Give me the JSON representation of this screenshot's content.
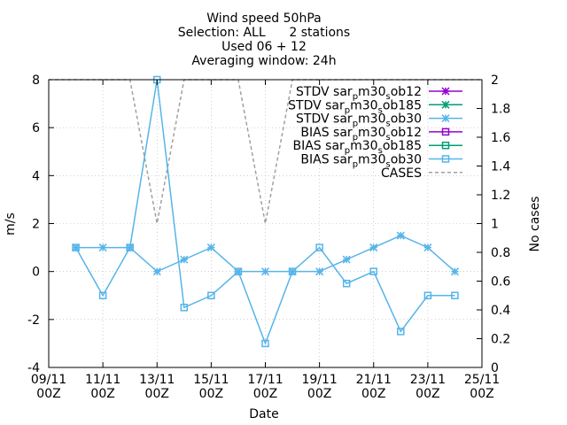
{
  "chart_data": {
    "type": "line",
    "title_lines": [
      "Wind speed 50hPa",
      "Selection: ALL      2 stations",
      "Used 06 + 12",
      "Averaging window: 24h"
    ],
    "xlabel": "Date",
    "ylabel": "m/s",
    "y2label": "No cases",
    "ylim": [
      -4,
      8
    ],
    "y2lim": [
      0,
      2
    ],
    "xlim_days": [
      0,
      16
    ],
    "x_ticks": [
      {
        "day": 0,
        "label1": "09/11",
        "label2": "00Z"
      },
      {
        "day": 2,
        "label1": "11/11",
        "label2": "00Z"
      },
      {
        "day": 4,
        "label1": "13/11",
        "label2": "00Z"
      },
      {
        "day": 6,
        "label1": "15/11",
        "label2": "00Z"
      },
      {
        "day": 8,
        "label1": "17/11",
        "label2": "00Z"
      },
      {
        "day": 10,
        "label1": "19/11",
        "label2": "00Z"
      },
      {
        "day": 12,
        "label1": "21/11",
        "label2": "00Z"
      },
      {
        "day": 14,
        "label1": "23/11",
        "label2": "00Z"
      },
      {
        "day": 16,
        "label1": "25/11",
        "label2": "00Z"
      }
    ],
    "y_ticks": [
      -4,
      -2,
      0,
      2,
      4,
      6,
      8
    ],
    "y2_ticks": [
      0,
      0.2,
      0.4,
      0.6,
      0.8,
      1,
      1.2,
      1.4,
      1.6,
      1.8,
      2
    ],
    "legend_position": "top-right",
    "x_days": [
      1,
      2,
      3,
      4,
      5,
      6,
      7,
      8,
      9,
      10,
      11,
      12,
      13,
      14,
      15
    ],
    "series": [
      {
        "name": "STDV sar_pm30_sob12",
        "label_main": "STDV sar",
        "label_sub": "p",
        "label_tail": "m30",
        "label_sub2": "s",
        "label_end": "ob12",
        "color": "#9400d3",
        "marker": "x",
        "values": []
      },
      {
        "name": "STDV sar_pm30_sob185",
        "label_main": "STDV sar",
        "label_sub": "p",
        "label_tail": "m30",
        "label_sub2": "s",
        "label_end": "ob185",
        "color": "#009e73",
        "marker": "x",
        "values": []
      },
      {
        "name": "STDV sar_pm30_sob30",
        "label_main": "STDV sar",
        "label_sub": "p",
        "label_tail": "m30",
        "label_sub2": "s",
        "label_end": "ob30",
        "color": "#56b4e9",
        "marker": "x",
        "values": [
          1,
          1,
          1,
          0,
          0.5,
          1,
          0,
          0,
          0,
          0,
          0.5,
          1,
          1.5,
          1,
          0
        ]
      },
      {
        "name": "BIAS sar_pm30_sob12",
        "label_main": "BIAS sar",
        "label_sub": "p",
        "label_tail": "m30",
        "label_sub2": "s",
        "label_end": "ob12",
        "color": "#9400d3",
        "marker": "square",
        "values": []
      },
      {
        "name": "BIAS sar_pm30_sob185",
        "label_main": "BIAS sar",
        "label_sub": "p",
        "label_tail": "m30",
        "label_sub2": "s",
        "label_end": "ob185",
        "color": "#009e73",
        "marker": "square",
        "values": []
      },
      {
        "name": "BIAS sar_pm30_sob30",
        "label_main": "BIAS sar",
        "label_sub": "p",
        "label_tail": "m30",
        "label_sub2": "s",
        "label_end": "ob30",
        "color": "#56b4e9",
        "marker": "square",
        "values": [
          1,
          -1,
          1,
          8,
          -1.5,
          -1,
          0,
          -3,
          0,
          1,
          -0.5,
          0,
          -2.5,
          -1,
          -1
        ]
      }
    ],
    "cases": {
      "name": "CASES",
      "color": "#a0a0a0",
      "x_days": [
        0,
        3,
        4,
        5,
        7,
        8,
        9,
        16
      ],
      "values": [
        2,
        2,
        1,
        2,
        2,
        1,
        2,
        2
      ]
    }
  }
}
